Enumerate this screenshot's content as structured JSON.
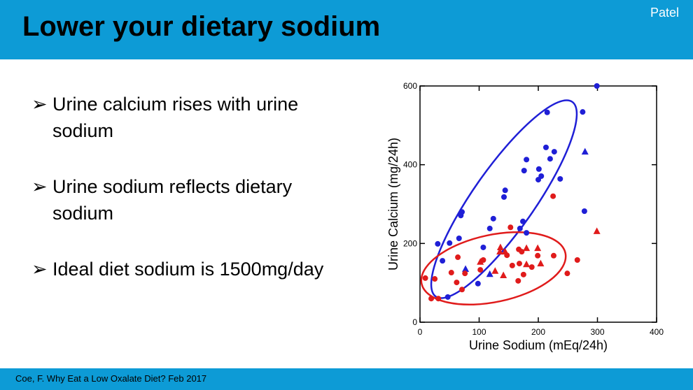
{
  "header": {
    "title": "Lower your dietary sodium",
    "author": "Patel"
  },
  "bullets": [
    "Urine calcium rises with urine sodium",
    "Urine sodium reflects dietary sodium",
    "Ideal diet sodium is 1500mg/day"
  ],
  "footer": "Coe, F. Why Eat a Low Oxalate Diet? Feb 2017",
  "chart_data": {
    "type": "scatter",
    "x_label": "Urine Sodium (mEq/24h)",
    "y_label": "Urine Calcium (mg/24h)",
    "xlim": [
      0,
      400
    ],
    "xticks": [
      0,
      100,
      200,
      300,
      400
    ],
    "ylim": [
      0,
      600
    ],
    "yticks": [
      0,
      200,
      400,
      600
    ],
    "series": [
      {
        "color": "#1f1fd6",
        "marker": "circle",
        "x": [
          299,
          215,
          275,
          213,
          227,
          220,
          180,
          201,
          176,
          205,
          200,
          237,
          144,
          142,
          71,
          69,
          278,
          174,
          124,
          118,
          169,
          180,
          66,
          30,
          50,
          107,
          38,
          98,
          47
        ],
        "values": [
          600,
          533,
          534,
          444,
          433,
          415,
          413,
          389,
          385,
          371,
          362,
          364,
          335,
          318,
          280,
          271,
          282,
          256,
          263,
          238,
          238,
          227,
          213,
          199,
          201,
          190,
          156,
          98,
          64
        ]
      },
      {
        "color": "#1f1fd6",
        "marker": "triangle",
        "x": [
          279,
          77,
          118
        ],
        "values": [
          433,
          135,
          122
        ]
      },
      {
        "color": "#e01b1b",
        "marker": "circle",
        "x": [
          225,
          153,
          9,
          25,
          31,
          19,
          64,
          53,
          76,
          62,
          71,
          102,
          147,
          167,
          172,
          156,
          168,
          175,
          166,
          199,
          189,
          226,
          249,
          266,
          107
        ],
        "values": [
          320,
          241,
          112,
          110,
          60,
          60,
          165,
          126,
          124,
          101,
          83,
          133,
          170,
          185,
          179,
          144,
          149,
          121,
          105,
          169,
          140,
          169,
          124,
          158,
          158
        ]
      },
      {
        "color": "#e01b1b",
        "marker": "triangle",
        "x": [
          136,
          144,
          127,
          141,
          180,
          199,
          180,
          299,
          102,
          204,
          135
        ],
        "values": [
          190,
          179,
          130,
          119,
          188,
          188,
          147,
          231,
          153,
          149,
          179
        ]
      }
    ]
  }
}
